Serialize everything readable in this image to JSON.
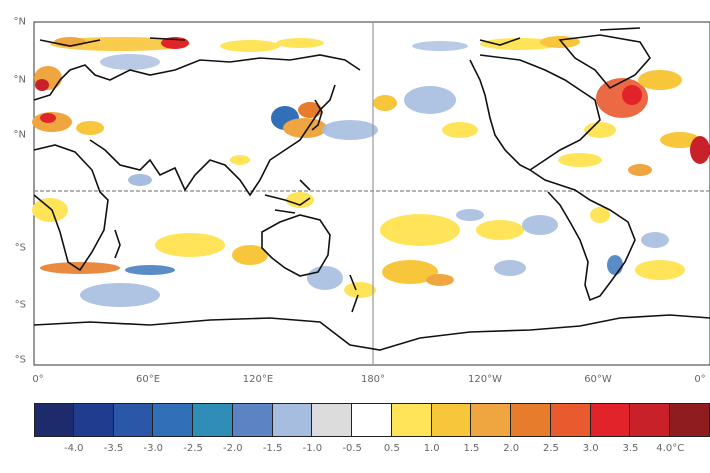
{
  "map": {
    "lat_labels": [
      "°N",
      "°N",
      "°N",
      "",
      "°S",
      "°S",
      "°S"
    ],
    "lon_labels": [
      "0°",
      "60°E",
      "120°E",
      "180°",
      "120°W",
      "60°W",
      "0°"
    ]
  },
  "legend": {
    "labels": [
      "-4.0",
      "-3.5",
      "-3.0",
      "-2.5",
      "-2.0",
      "-1.5",
      "-1.0",
      "-0.5",
      "0.5",
      "1.0",
      "1.5",
      "2.0",
      "2.5",
      "3.0",
      "3.5",
      "4.0°C"
    ],
    "colors": [
      "#1d2a6b",
      "#1f3c8f",
      "#2b57a8",
      "#3170b8",
      "#2f8db8",
      "#5c83c4",
      "#a6bde0",
      "#dcdcdc",
      "#ffffff",
      "#ffe45a",
      "#f8c63a",
      "#f0a640",
      "#e77d2c",
      "#ea5a2f",
      "#e2232a",
      "#c9212a",
      "#8f1c1e"
    ]
  }
}
